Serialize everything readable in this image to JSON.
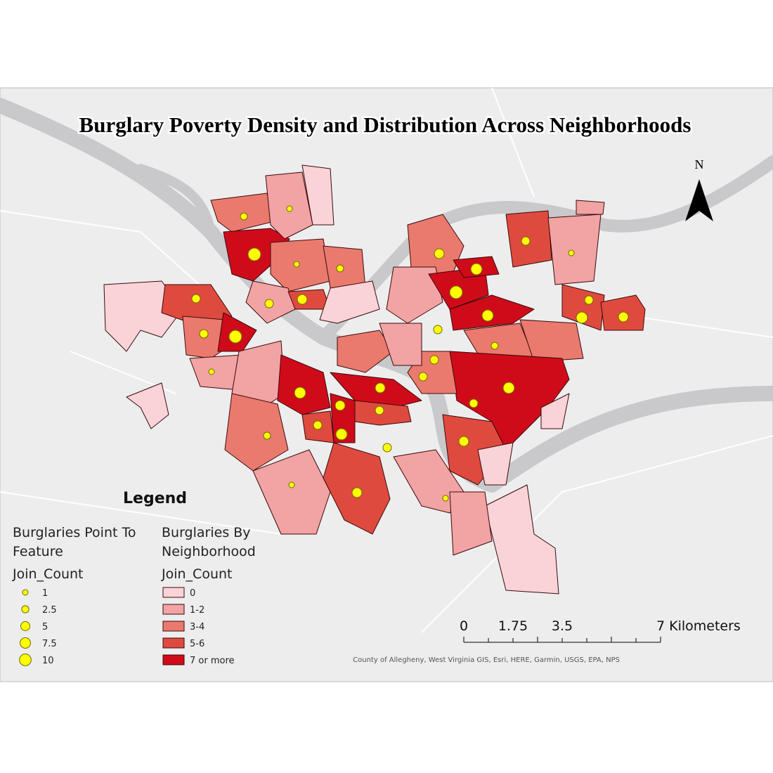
{
  "map": {
    "title": "Burglary Poverty Density and Distribution Across Neighborhoods",
    "north_label": "N",
    "legend": {
      "heading": "Legend",
      "points": {
        "title_lines": [
          "Burglaries Point To",
          "Feature"
        ],
        "field": "Join_Count",
        "items": [
          "1",
          "2.5",
          "5",
          "7.5",
          "10"
        ]
      },
      "areas": {
        "title_lines": [
          "Burglaries By",
          "Neighborhood"
        ],
        "field": "Join_Count",
        "items": [
          {
            "label": "0",
            "color": "#f9d3d8"
          },
          {
            "label": "1-2",
            "color": "#f2a3a3"
          },
          {
            "label": "3-4",
            "color": "#ea7a6e"
          },
          {
            "label": "5-6",
            "color": "#df4a3f"
          },
          {
            "label": "7 or more",
            "color": "#cf0b1a"
          }
        ]
      }
    },
    "scale_bar": {
      "labels": [
        "0",
        "1.75",
        "3.5",
        "7 Kilometers"
      ]
    },
    "attribution": "County of Allegheny, West Virginia GIS, Esri, HERE, Garmin, USGS, EPA, NPS"
  }
}
